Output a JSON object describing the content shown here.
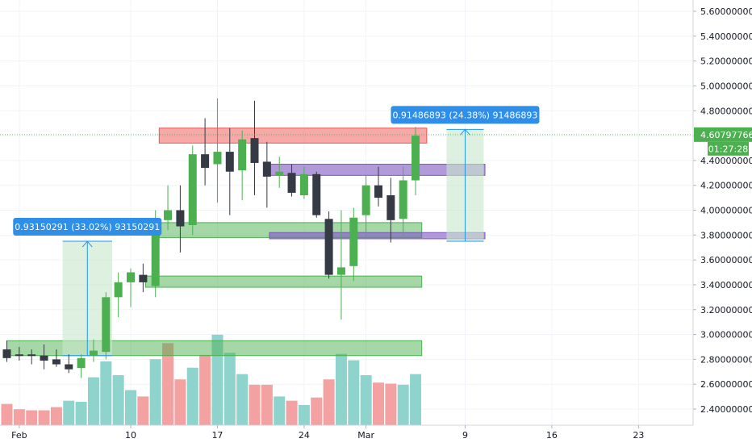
{
  "chart_data": {
    "type": "candlestick",
    "y_axis": {
      "ylim": [
        2.28,
        5.7
      ],
      "ticks": [
        "5.60000000",
        "5.40000000",
        "5.20000000",
        "5.00000000",
        "4.80000000",
        "4.60000000",
        "4.40000000",
        "4.20000000",
        "4.00000000",
        "3.80000000",
        "3.60000000",
        "3.40000000",
        "3.20000000",
        "3.00000000",
        "2.80000000",
        "2.60000000",
        "2.40000000"
      ],
      "tick_values": [
        5.6,
        5.4,
        5.2,
        5.0,
        4.8,
        4.6,
        4.4,
        4.2,
        4.0,
        3.8,
        3.6,
        3.4,
        3.2,
        3.0,
        2.8,
        2.6,
        2.4
      ]
    },
    "x_axis": {
      "labels": [
        {
          "label": "Feb",
          "day": 1
        },
        {
          "label": "10",
          "day": 10
        },
        {
          "label": "17",
          "day": 17
        },
        {
          "label": "24",
          "day": 24
        },
        {
          "label": "Mar",
          "day": 29
        },
        {
          "label": "9",
          "day": 37
        },
        {
          "label": "16",
          "day": 44
        },
        {
          "label": "23",
          "day": 51
        }
      ]
    },
    "current_price": {
      "value": 4.60797766,
      "label": "4.60797766",
      "countdown": "01:27:28"
    },
    "candles": [
      {
        "day": 0,
        "o": 2.88,
        "h": 2.95,
        "l": 2.78,
        "c": 2.81
      },
      {
        "day": 1,
        "o": 2.84,
        "h": 2.9,
        "l": 2.79,
        "c": 2.83
      },
      {
        "day": 2,
        "o": 2.84,
        "h": 2.88,
        "l": 2.76,
        "c": 2.83
      },
      {
        "day": 3,
        "o": 2.83,
        "h": 2.92,
        "l": 2.72,
        "c": 2.79
      },
      {
        "day": 4,
        "o": 2.8,
        "h": 2.88,
        "l": 2.74,
        "c": 2.76
      },
      {
        "day": 5,
        "o": 2.76,
        "h": 2.84,
        "l": 2.69,
        "c": 2.72
      },
      {
        "day": 6,
        "o": 2.73,
        "h": 2.84,
        "l": 2.65,
        "c": 2.81
      },
      {
        "day": 7,
        "o": 2.83,
        "h": 2.96,
        "l": 2.78,
        "c": 2.87
      },
      {
        "day": 8,
        "o": 2.86,
        "h": 3.34,
        "l": 2.8,
        "c": 3.3
      },
      {
        "day": 9,
        "o": 3.3,
        "h": 3.5,
        "l": 3.14,
        "c": 3.42
      },
      {
        "day": 10,
        "o": 3.42,
        "h": 3.53,
        "l": 3.22,
        "c": 3.5
      },
      {
        "day": 11,
        "o": 3.48,
        "h": 3.57,
        "l": 3.34,
        "c": 3.42
      },
      {
        "day": 12,
        "o": 3.39,
        "h": 4.0,
        "l": 3.3,
        "c": 3.92
      },
      {
        "day": 13,
        "o": 3.92,
        "h": 4.2,
        "l": 3.84,
        "c": 4.0
      },
      {
        "day": 14,
        "o": 4.0,
        "h": 4.2,
        "l": 3.66,
        "c": 3.87
      },
      {
        "day": 15,
        "o": 3.88,
        "h": 4.52,
        "l": 3.8,
        "c": 4.45
      },
      {
        "day": 16,
        "o": 4.45,
        "h": 4.74,
        "l": 4.2,
        "c": 4.34
      },
      {
        "day": 17,
        "o": 4.37,
        "h": 4.9,
        "l": 4.06,
        "c": 4.47
      },
      {
        "day": 18,
        "o": 4.47,
        "h": 4.66,
        "l": 3.96,
        "c": 4.31
      },
      {
        "day": 19,
        "o": 4.32,
        "h": 4.64,
        "l": 4.08,
        "c": 4.57
      },
      {
        "day": 20,
        "o": 4.58,
        "h": 4.88,
        "l": 4.12,
        "c": 4.38
      },
      {
        "day": 21,
        "o": 4.39,
        "h": 4.55,
        "l": 4.02,
        "c": 4.27
      },
      {
        "day": 22,
        "o": 4.28,
        "h": 4.43,
        "l": 4.18,
        "c": 4.31
      },
      {
        "day": 23,
        "o": 4.3,
        "h": 4.37,
        "l": 4.11,
        "c": 4.14
      },
      {
        "day": 24,
        "o": 4.12,
        "h": 4.35,
        "l": 4.09,
        "c": 4.29
      },
      {
        "day": 25,
        "o": 4.29,
        "h": 4.31,
        "l": 3.94,
        "c": 3.96
      },
      {
        "day": 26,
        "o": 3.93,
        "h": 3.99,
        "l": 3.45,
        "c": 3.48
      },
      {
        "day": 27,
        "o": 3.48,
        "h": 4.0,
        "l": 3.12,
        "c": 3.54
      },
      {
        "day": 28,
        "o": 3.55,
        "h": 4.02,
        "l": 3.43,
        "c": 3.94
      },
      {
        "day": 29,
        "o": 3.96,
        "h": 4.28,
        "l": 3.79,
        "c": 4.2
      },
      {
        "day": 30,
        "o": 4.2,
        "h": 4.35,
        "l": 4.03,
        "c": 4.1
      },
      {
        "day": 31,
        "o": 4.12,
        "h": 4.26,
        "l": 3.74,
        "c": 3.92
      },
      {
        "day": 32,
        "o": 3.93,
        "h": 4.35,
        "l": 3.78,
        "c": 4.24
      },
      {
        "day": 33,
        "o": 4.24,
        "h": 4.67,
        "l": 4.12,
        "c": 4.6
      }
    ],
    "volume": [
      {
        "day": 0,
        "rel": 0.2,
        "up": false
      },
      {
        "day": 1,
        "rel": 0.15,
        "up": false
      },
      {
        "day": 2,
        "rel": 0.14,
        "up": false
      },
      {
        "day": 3,
        "rel": 0.14,
        "up": false
      },
      {
        "day": 4,
        "rel": 0.17,
        "up": false
      },
      {
        "day": 5,
        "rel": 0.23,
        "up": true
      },
      {
        "day": 6,
        "rel": 0.22,
        "up": true
      },
      {
        "day": 7,
        "rel": 0.45,
        "up": true
      },
      {
        "day": 8,
        "rel": 0.6,
        "up": true
      },
      {
        "day": 9,
        "rel": 0.47,
        "up": true
      },
      {
        "day": 10,
        "rel": 0.33,
        "up": true
      },
      {
        "day": 11,
        "rel": 0.27,
        "up": false
      },
      {
        "day": 12,
        "rel": 0.62,
        "up": true
      },
      {
        "day": 13,
        "rel": 0.77,
        "up": false
      },
      {
        "day": 14,
        "rel": 0.43,
        "up": false
      },
      {
        "day": 15,
        "rel": 0.54,
        "up": true
      },
      {
        "day": 16,
        "rel": 0.66,
        "up": false
      },
      {
        "day": 17,
        "rel": 0.85,
        "up": true
      },
      {
        "day": 18,
        "rel": 0.68,
        "up": true
      },
      {
        "day": 19,
        "rel": 0.48,
        "up": true
      },
      {
        "day": 20,
        "rel": 0.38,
        "up": false
      },
      {
        "day": 21,
        "rel": 0.38,
        "up": false
      },
      {
        "day": 22,
        "rel": 0.27,
        "up": true
      },
      {
        "day": 23,
        "rel": 0.23,
        "up": false
      },
      {
        "day": 24,
        "rel": 0.19,
        "up": true
      },
      {
        "day": 25,
        "rel": 0.26,
        "up": false
      },
      {
        "day": 26,
        "rel": 0.43,
        "up": false
      },
      {
        "day": 27,
        "rel": 0.67,
        "up": true
      },
      {
        "day": 28,
        "rel": 0.61,
        "up": true
      },
      {
        "day": 29,
        "rel": 0.47,
        "up": true
      },
      {
        "day": 30,
        "rel": 0.4,
        "up": false
      },
      {
        "day": 31,
        "rel": 0.39,
        "up": false
      },
      {
        "day": 32,
        "rel": 0.38,
        "up": true
      },
      {
        "day": 33,
        "rel": 0.48,
        "up": true
      }
    ],
    "zones": [
      {
        "name": "resistance-zone",
        "kind": "red",
        "y_top": 4.66,
        "y_bottom": 4.54,
        "day_from": 12.3,
        "day_to": 33.9
      },
      {
        "name": "purple-zone-upper",
        "kind": "purple",
        "y_top": 4.37,
        "y_bottom": 4.28,
        "day_from": 21.2,
        "day_to": 38.6
      },
      {
        "name": "green-zone-middle",
        "kind": "green",
        "y_top": 3.9,
        "y_bottom": 3.78,
        "day_from": 12.3,
        "day_to": 33.5
      },
      {
        "name": "purple-zone-lower",
        "kind": "purple",
        "y_top": 3.82,
        "y_bottom": 3.77,
        "day_from": 21.2,
        "day_to": 38.6
      },
      {
        "name": "green-zone-lower",
        "kind": "green",
        "y_top": 3.47,
        "y_bottom": 3.38,
        "day_from": 11.2,
        "day_to": 33.5
      },
      {
        "name": "green-zone-bottom",
        "kind": "green",
        "y_top": 2.95,
        "y_bottom": 2.83,
        "day_from": 0,
        "day_to": 33.5
      }
    ],
    "measurements": [
      {
        "name": "measure-1",
        "label": "0.93150291 (33.02%) 93150291",
        "day_from": 4.5,
        "day_to": 8.5,
        "y_from": 2.83,
        "y_to": 3.75
      },
      {
        "name": "measure-2",
        "label": "0.91486893 (24.38%) 91486893",
        "day_from": 35.5,
        "day_to": 38.5,
        "y_from": 3.75,
        "y_to": 4.65
      }
    ],
    "colors": {
      "up": "#4caf50",
      "down": "#363a45",
      "vol_up": "#8fd4cc",
      "vol_down": "#f4a1a1",
      "red_zone": "#ef5350",
      "green_zone": "#4caf50",
      "purple_zone": "#7e57c2",
      "measure_fill": "#c8e6c9",
      "measure_line": "#2196f3",
      "label_bg": "#2f8ee8",
      "price_label_bg": "#4caf50",
      "grid": "#f0f3fa",
      "axis_text": "#131722"
    }
  }
}
